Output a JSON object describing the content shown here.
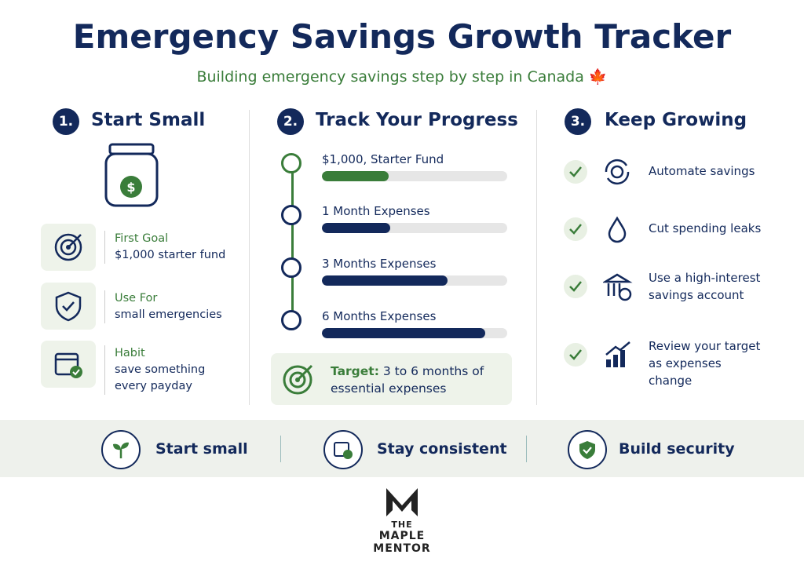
{
  "header": {
    "title": "Emergency Savings Growth Tracker",
    "subtitle": "Building emergency savings step by step in Canada 🍁"
  },
  "columns": [
    {
      "number": "1.",
      "title": "Start Small",
      "items": [
        {
          "title": "First Goal",
          "text": "$1,000 starter fund"
        },
        {
          "title": "Use For",
          "text": "small emergencies"
        },
        {
          "title": "Habit",
          "text": "save something every payday"
        }
      ]
    },
    {
      "number": "2.",
      "title": "Track Your Progress",
      "steps": [
        {
          "label": "$1,000, Starter Fund",
          "progress": 36,
          "color": "#3a7d3a"
        },
        {
          "label": "1 Month Expenses",
          "progress": 37,
          "color": "#13295b"
        },
        {
          "label": "3 Months Expenses",
          "progress": 68,
          "color": "#13295b"
        },
        {
          "label": "6 Months Expenses",
          "progress": 88,
          "color": "#13295b"
        }
      ],
      "target": {
        "label": "Target:",
        "text": "3 to 6 months of essential expenses"
      }
    },
    {
      "number": "3.",
      "title": "Keep Growing",
      "items": [
        "Automate savings",
        "Cut spending leaks",
        "Use a high-interest savings account",
        "Review your target as expenses change"
      ]
    }
  ],
  "footer": [
    "Start small",
    "Stay consistent",
    "Build security"
  ],
  "logo": [
    "THE",
    "MAPLE",
    "MENTOR"
  ]
}
